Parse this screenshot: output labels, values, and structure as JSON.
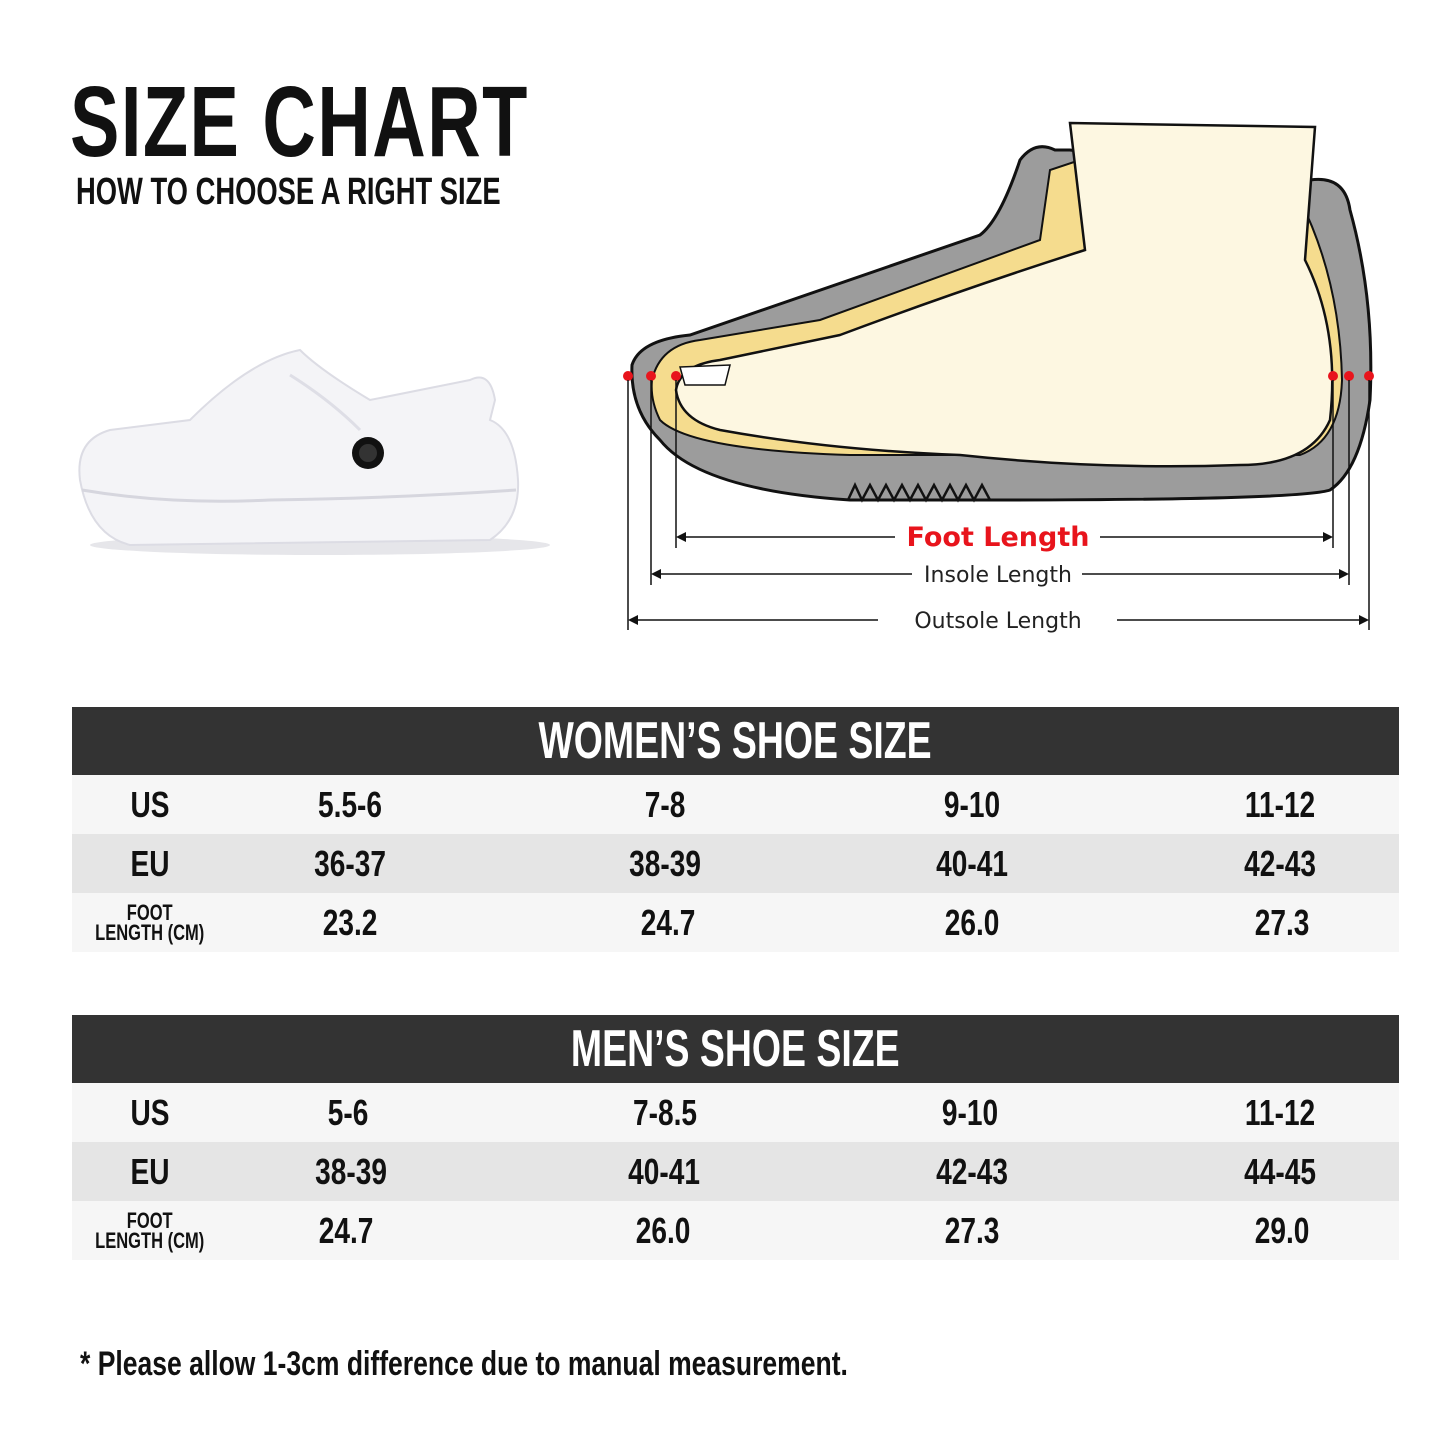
{
  "header": {
    "title": "SIZE CHART",
    "subtitle": "HOW TO CHOOSE A RIGHT SIZE"
  },
  "diagram": {
    "foot_length": "Foot Length",
    "insole_length": "Insole Length",
    "outsole_length": "Outsole Length",
    "colors": {
      "accent": "#e8141c",
      "sole": "#9a9a9a",
      "insole": "#f5dc8e",
      "foot": "#fdf7e1"
    }
  },
  "women": {
    "title": "WOMEN’S SHOE SIZE",
    "rows": [
      {
        "label": "US",
        "values": [
          "5.5-6",
          "7-8",
          "9-10",
          "11-12"
        ]
      },
      {
        "label": "EU",
        "values": [
          "36-37",
          "38-39",
          "40-41",
          "42-43"
        ]
      },
      {
        "label_line1": "FOOT",
        "label_line2": "LENGTH (CM)",
        "values": [
          "23.2",
          "24.7",
          "26.0",
          "27.3"
        ]
      }
    ]
  },
  "men": {
    "title": "MEN’S SHOE SIZE",
    "rows": [
      {
        "label": "US",
        "values": [
          "5-6",
          "7-8.5",
          "9-10",
          "11-12"
        ]
      },
      {
        "label": "EU",
        "values": [
          "38-39",
          "40-41",
          "42-43",
          "44-45"
        ]
      },
      {
        "label_line1": "FOOT",
        "label_line2": "LENGTH (CM)",
        "values": [
          "24.7",
          "26.0",
          "27.3",
          "29.0"
        ]
      }
    ]
  },
  "footnote": "* Please allow 1-3cm difference due to manual measurement."
}
